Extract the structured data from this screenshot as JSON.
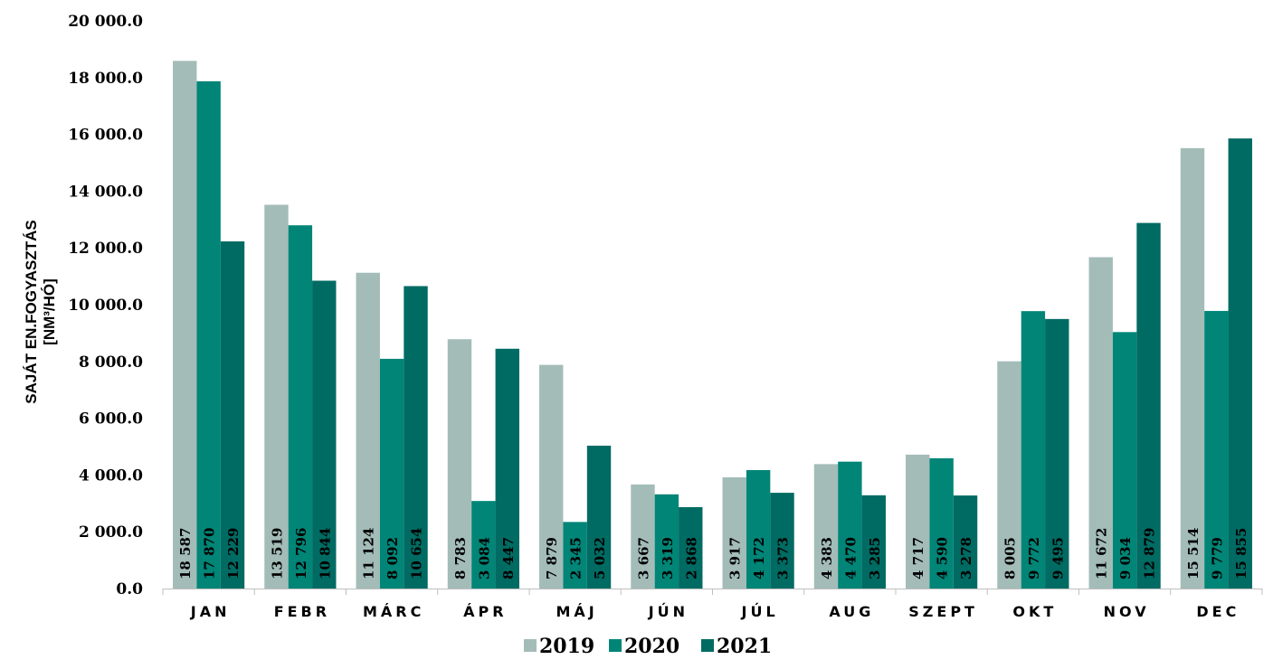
{
  "chart_data": {
    "type": "bar",
    "title": "",
    "xlabel": "",
    "ylabel": [
      "SAJÁT EN.FOGYASZTÁS",
      "[NM³/HÓ]"
    ],
    "categories": [
      "JAN",
      "FEBR",
      "MÁRC",
      "ÁPR",
      "MÁJ",
      "JÚN",
      "JÚL",
      "AUG",
      "SZEPT",
      "OKT",
      "NOV",
      "DEC"
    ],
    "series": [
      {
        "name": "2019",
        "color": "#a3bcb8",
        "values": [
          18587,
          13519,
          11124,
          8783,
          7879,
          3667,
          3917,
          4383,
          4717,
          8005,
          11672,
          15514
        ],
        "labels": [
          "18 587",
          "13 519",
          "11 124",
          "8 783",
          "7 879",
          "3 667",
          "3 917",
          "4 383",
          "4 717",
          "8 005",
          "11 672",
          "15 514"
        ]
      },
      {
        "name": "2020",
        "color": "#008577",
        "values": [
          17870,
          12796,
          8092,
          3084,
          2345,
          3319,
          4172,
          4470,
          4590,
          9772,
          9034,
          9779
        ],
        "labels": [
          "17 870",
          "12 796",
          "8 092",
          "3 084",
          "2 345",
          "3 319",
          "4 172",
          "4 470",
          "4 590",
          "9 772",
          "9 034",
          "9 779"
        ]
      },
      {
        "name": "2021",
        "color": "#006b63",
        "values": [
          12229,
          10844,
          10654,
          8447,
          5032,
          2868,
          3373,
          3285,
          3278,
          9495,
          12879,
          15855
        ],
        "labels": [
          "12 229",
          "10 844",
          "10 654",
          "8 447",
          "5 032",
          "2 868",
          "3 373",
          "3 285",
          "3 278",
          "9 495",
          "12 879",
          "15 855"
        ]
      }
    ],
    "ylim": [
      0,
      20000
    ],
    "yticks": [
      0,
      2000,
      4000,
      6000,
      8000,
      10000,
      12000,
      14000,
      16000,
      18000,
      20000
    ],
    "ytick_labels": [
      "0.0",
      "2 000.0",
      "4 000.0",
      "6 000.0",
      "8 000.0",
      "10 000.0",
      "12 000.0",
      "14 000.0",
      "16 000.0",
      "18 000.0",
      "20 000.0"
    ],
    "grid": false,
    "legend_position": "bottom"
  }
}
